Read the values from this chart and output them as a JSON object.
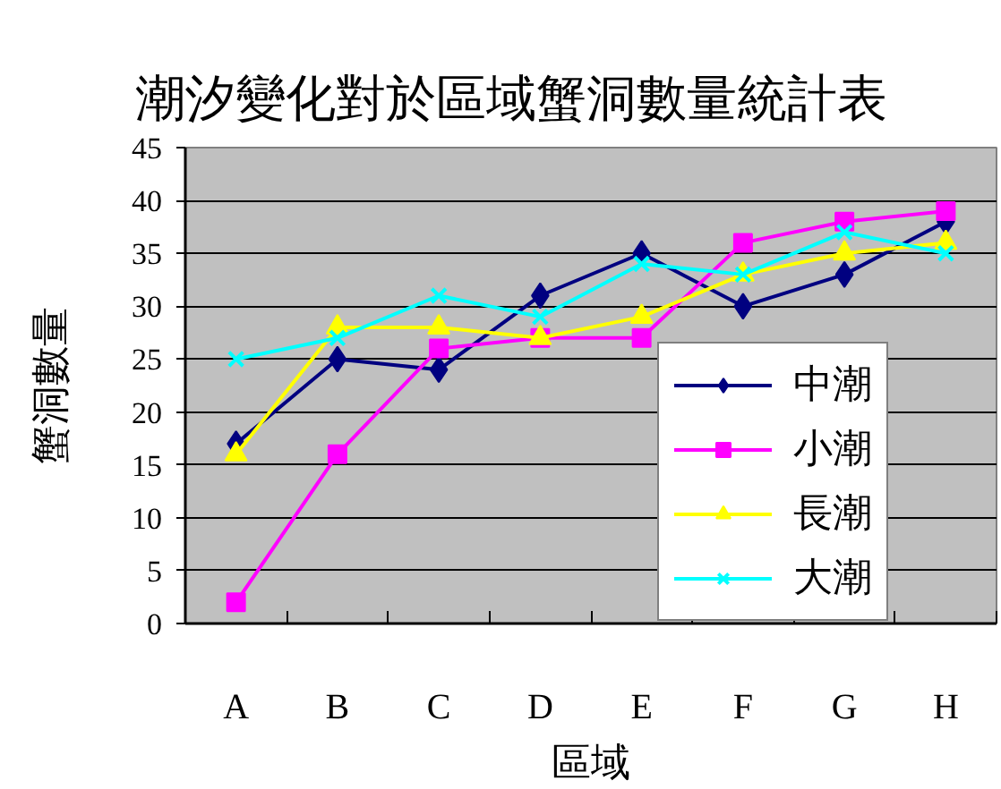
{
  "chart_data": {
    "type": "line",
    "title": "潮汐變化對於區域蟹洞數量統計表",
    "xlabel": "區域",
    "ylabel": "蟹洞數量",
    "categories": [
      "A",
      "B",
      "C",
      "D",
      "E",
      "F",
      "G",
      "H"
    ],
    "ylim": [
      0,
      45
    ],
    "yticks": [
      0,
      5,
      10,
      15,
      20,
      25,
      30,
      35,
      40,
      45
    ],
    "grid": "y",
    "legend": "bottom right",
    "series": [
      {
        "name": "中潮",
        "color": "#000080",
        "marker": "diamond",
        "values": [
          17,
          25,
          24,
          31,
          35,
          30,
          33,
          38
        ]
      },
      {
        "name": "小潮",
        "color": "#ff00ff",
        "marker": "square",
        "values": [
          2,
          16,
          26,
          27,
          27,
          36,
          38,
          39
        ]
      },
      {
        "name": "長潮",
        "color": "#ffff00",
        "marker": "triangle",
        "values": [
          16,
          28,
          28,
          27,
          29,
          33,
          35,
          36
        ]
      },
      {
        "name": "大潮",
        "color": "#00ffff",
        "marker": "cross",
        "values": [
          25,
          27,
          31,
          29,
          34,
          33,
          37,
          35
        ]
      }
    ]
  }
}
